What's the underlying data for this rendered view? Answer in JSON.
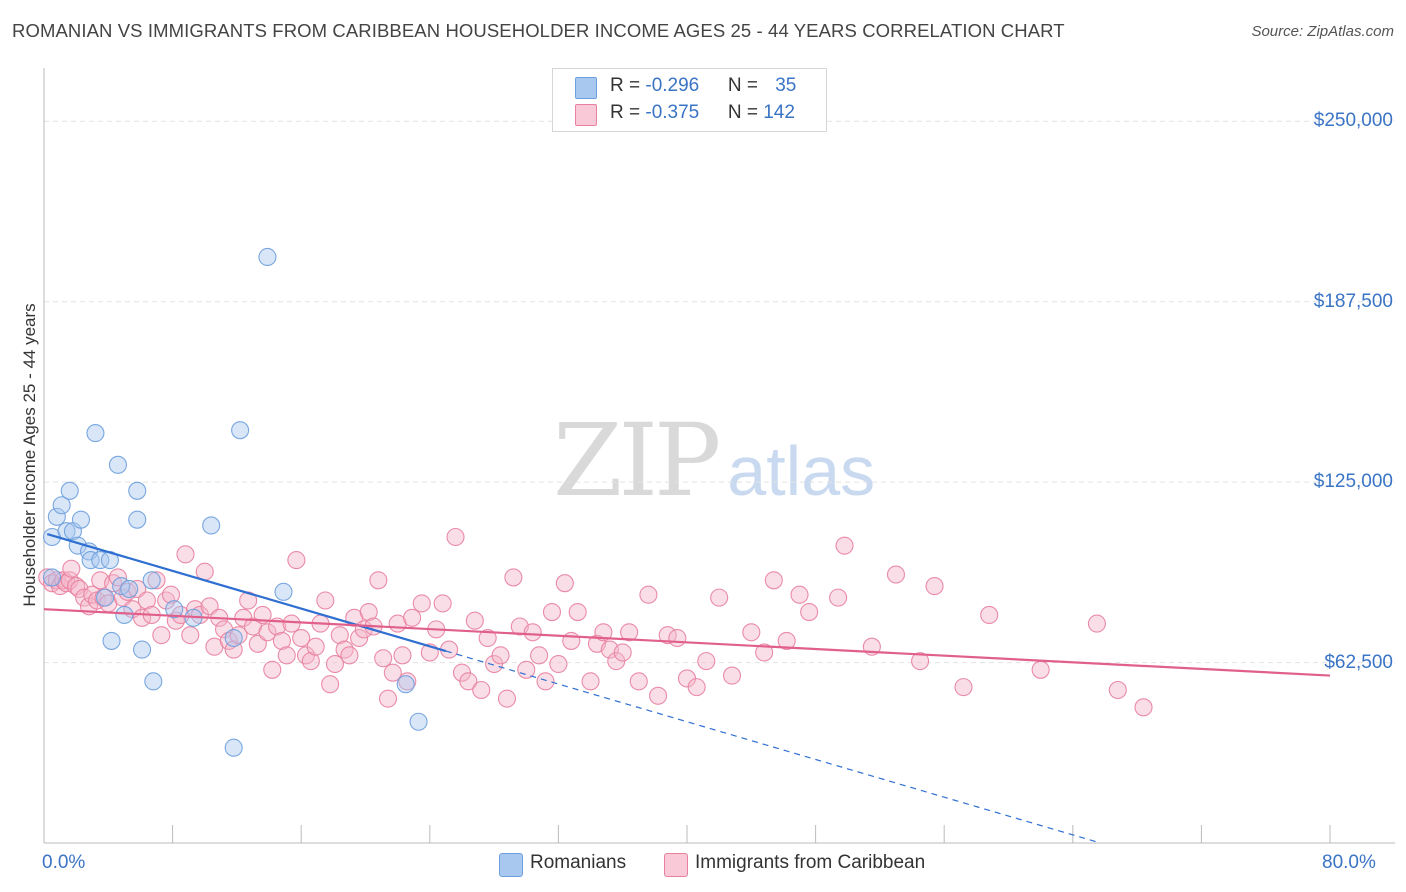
{
  "header": {
    "title": "ROMANIAN VS IMMIGRANTS FROM CARIBBEAN HOUSEHOLDER INCOME AGES 25 - 44 YEARS CORRELATION CHART",
    "source": "Source: ZipAtlas.com"
  },
  "watermark": {
    "zip": "ZIP",
    "atlas": "atlas"
  },
  "legend": {
    "rows": [
      {
        "r_label": "R = ",
        "r_value": "-0.296",
        "n_label": "N = ",
        "n_value": "35",
        "color": "#a9c8ef"
      },
      {
        "r_label": "R = ",
        "r_value": "-0.375",
        "n_label": "N = ",
        "n_value": "142",
        "color": "#f5b6c9"
      }
    ]
  },
  "bottom_legend": {
    "items": [
      {
        "label": "Romanians",
        "color": "#a9c8ef"
      },
      {
        "label": "Immigrants from Caribbean",
        "color": "#f5b6c9"
      }
    ]
  },
  "chart_data": {
    "type": "scatter",
    "title": "ROMANIAN VS IMMIGRANTS FROM CARIBBEAN HOUSEHOLDER INCOME AGES 25 - 44 YEARS CORRELATION CHART",
    "ylabel": "Householder Income Ages 25 - 44 years",
    "xlim": [
      0,
      80
    ],
    "ylim": [
      0,
      265000
    ],
    "x_tick_labels": [
      "0.0%",
      "80.0%"
    ],
    "y_ticks": [
      {
        "value": 62500,
        "label": "$62,500"
      },
      {
        "value": 125000,
        "label": "$125,000"
      },
      {
        "value": 187500,
        "label": "$187,500"
      },
      {
        "value": 250000,
        "label": "$250,000"
      }
    ],
    "grid": true,
    "legend_position": "top-center",
    "series": [
      {
        "name": "Romanians",
        "color": "#a9c8ef",
        "stroke": "#6d9fdd",
        "trend": {
          "x0": 0.2,
          "y0": 107000,
          "x1": 25.0,
          "y1": 66500,
          "dash_to_x": 65.5,
          "color": "#2f6fd1"
        },
        "points": [
          [
            0.5,
            92000
          ],
          [
            0.5,
            106000
          ],
          [
            0.8,
            113000
          ],
          [
            1.1,
            117000
          ],
          [
            1.4,
            108000
          ],
          [
            1.6,
            122000
          ],
          [
            1.8,
            108000
          ],
          [
            2.1,
            103000
          ],
          [
            2.3,
            112000
          ],
          [
            2.8,
            101000
          ],
          [
            2.9,
            98000
          ],
          [
            3.2,
            142000
          ],
          [
            3.5,
            98000
          ],
          [
            3.8,
            85000
          ],
          [
            4.1,
            98000
          ],
          [
            4.2,
            70000
          ],
          [
            4.6,
            131000
          ],
          [
            4.8,
            89000
          ],
          [
            5.0,
            79000
          ],
          [
            5.3,
            88000
          ],
          [
            5.8,
            122000
          ],
          [
            5.8,
            112000
          ],
          [
            6.1,
            67000
          ],
          [
            6.7,
            91000
          ],
          [
            6.8,
            56000
          ],
          [
            8.1,
            81000
          ],
          [
            9.3,
            78000
          ],
          [
            10.4,
            110000
          ],
          [
            11.8,
            33000
          ],
          [
            11.8,
            71000
          ],
          [
            12.2,
            143000
          ],
          [
            13.9,
            203000
          ],
          [
            14.9,
            87000
          ],
          [
            22.5,
            55000
          ],
          [
            23.3,
            42000
          ]
        ]
      },
      {
        "name": "Immigrants from Caribbean",
        "color": "#f5b6c9",
        "stroke": "#e8809f",
        "trend": {
          "x0": 0.0,
          "y0": 81000,
          "x1": 80.0,
          "y1": 58000,
          "color": "#e0608b"
        },
        "points": [
          [
            0.2,
            92000
          ],
          [
            0.5,
            90000
          ],
          [
            0.8,
            91000
          ],
          [
            1.0,
            89000
          ],
          [
            1.2,
            91000
          ],
          [
            1.4,
            90000
          ],
          [
            1.6,
            91000
          ],
          [
            1.7,
            95000
          ],
          [
            2.0,
            89000
          ],
          [
            2.2,
            88000
          ],
          [
            2.5,
            85000
          ],
          [
            2.8,
            82000
          ],
          [
            3.0,
            86000
          ],
          [
            3.3,
            84000
          ],
          [
            3.5,
            91000
          ],
          [
            3.7,
            85000
          ],
          [
            4.0,
            83000
          ],
          [
            4.3,
            90000
          ],
          [
            4.6,
            92000
          ],
          [
            4.9,
            85000
          ],
          [
            5.2,
            87000
          ],
          [
            5.5,
            81000
          ],
          [
            5.8,
            88000
          ],
          [
            6.1,
            78000
          ],
          [
            6.4,
            84000
          ],
          [
            6.7,
            79000
          ],
          [
            7.0,
            91000
          ],
          [
            7.3,
            72000
          ],
          [
            7.6,
            84000
          ],
          [
            7.9,
            86000
          ],
          [
            8.2,
            77000
          ],
          [
            8.5,
            79000
          ],
          [
            8.8,
            100000
          ],
          [
            9.1,
            72000
          ],
          [
            9.4,
            81000
          ],
          [
            9.7,
            79000
          ],
          [
            10.0,
            94000
          ],
          [
            10.3,
            82000
          ],
          [
            10.6,
            68000
          ],
          [
            10.9,
            78000
          ],
          [
            11.2,
            74000
          ],
          [
            11.5,
            70000
          ],
          [
            11.8,
            67000
          ],
          [
            12.1,
            72000
          ],
          [
            12.4,
            78000
          ],
          [
            12.7,
            84000
          ],
          [
            13.0,
            75000
          ],
          [
            13.3,
            69000
          ],
          [
            13.6,
            79000
          ],
          [
            13.9,
            73000
          ],
          [
            14.2,
            60000
          ],
          [
            14.5,
            75000
          ],
          [
            14.8,
            70000
          ],
          [
            15.1,
            65000
          ],
          [
            15.4,
            76000
          ],
          [
            15.7,
            98000
          ],
          [
            16.0,
            71000
          ],
          [
            16.3,
            65000
          ],
          [
            16.6,
            63000
          ],
          [
            16.9,
            68000
          ],
          [
            17.2,
            76000
          ],
          [
            17.5,
            84000
          ],
          [
            17.8,
            55000
          ],
          [
            18.1,
            62000
          ],
          [
            18.4,
            72000
          ],
          [
            18.7,
            67000
          ],
          [
            19.0,
            65000
          ],
          [
            19.3,
            78000
          ],
          [
            19.6,
            71000
          ],
          [
            19.9,
            74000
          ],
          [
            20.2,
            80000
          ],
          [
            20.5,
            75000
          ],
          [
            20.8,
            91000
          ],
          [
            21.1,
            64000
          ],
          [
            21.4,
            50000
          ],
          [
            21.7,
            59000
          ],
          [
            22.0,
            76000
          ],
          [
            22.3,
            65000
          ],
          [
            22.6,
            56000
          ],
          [
            22.9,
            78000
          ],
          [
            23.5,
            83000
          ],
          [
            24.0,
            66000
          ],
          [
            24.4,
            74000
          ],
          [
            24.8,
            83000
          ],
          [
            25.2,
            67000
          ],
          [
            25.6,
            106000
          ],
          [
            26.0,
            59000
          ],
          [
            26.4,
            56000
          ],
          [
            26.8,
            77000
          ],
          [
            27.2,
            53000
          ],
          [
            27.6,
            71000
          ],
          [
            28.0,
            62000
          ],
          [
            28.4,
            65000
          ],
          [
            28.8,
            50000
          ],
          [
            29.2,
            92000
          ],
          [
            29.6,
            75000
          ],
          [
            30.0,
            60000
          ],
          [
            30.4,
            73000
          ],
          [
            30.8,
            65000
          ],
          [
            31.2,
            56000
          ],
          [
            31.6,
            80000
          ],
          [
            32.0,
            62000
          ],
          [
            32.4,
            90000
          ],
          [
            32.8,
            70000
          ],
          [
            33.2,
            80000
          ],
          [
            34.0,
            56000
          ],
          [
            34.4,
            69000
          ],
          [
            34.8,
            73000
          ],
          [
            35.2,
            67000
          ],
          [
            35.6,
            63000
          ],
          [
            36.0,
            66000
          ],
          [
            36.4,
            73000
          ],
          [
            37.0,
            56000
          ],
          [
            37.6,
            86000
          ],
          [
            38.2,
            51000
          ],
          [
            38.8,
            72000
          ],
          [
            39.4,
            71000
          ],
          [
            40.0,
            57000
          ],
          [
            40.6,
            54000
          ],
          [
            41.2,
            63000
          ],
          [
            42.0,
            85000
          ],
          [
            42.8,
            58000
          ],
          [
            44.0,
            73000
          ],
          [
            44.8,
            66000
          ],
          [
            45.4,
            91000
          ],
          [
            46.2,
            70000
          ],
          [
            47.0,
            86000
          ],
          [
            47.6,
            80000
          ],
          [
            49.4,
            85000
          ],
          [
            49.8,
            103000
          ],
          [
            51.5,
            68000
          ],
          [
            53.0,
            93000
          ],
          [
            54.5,
            63000
          ],
          [
            55.4,
            89000
          ],
          [
            57.2,
            54000
          ],
          [
            58.8,
            79000
          ],
          [
            62.0,
            60000
          ],
          [
            65.5,
            76000
          ],
          [
            66.8,
            53000
          ],
          [
            68.4,
            47000
          ]
        ]
      }
    ]
  }
}
